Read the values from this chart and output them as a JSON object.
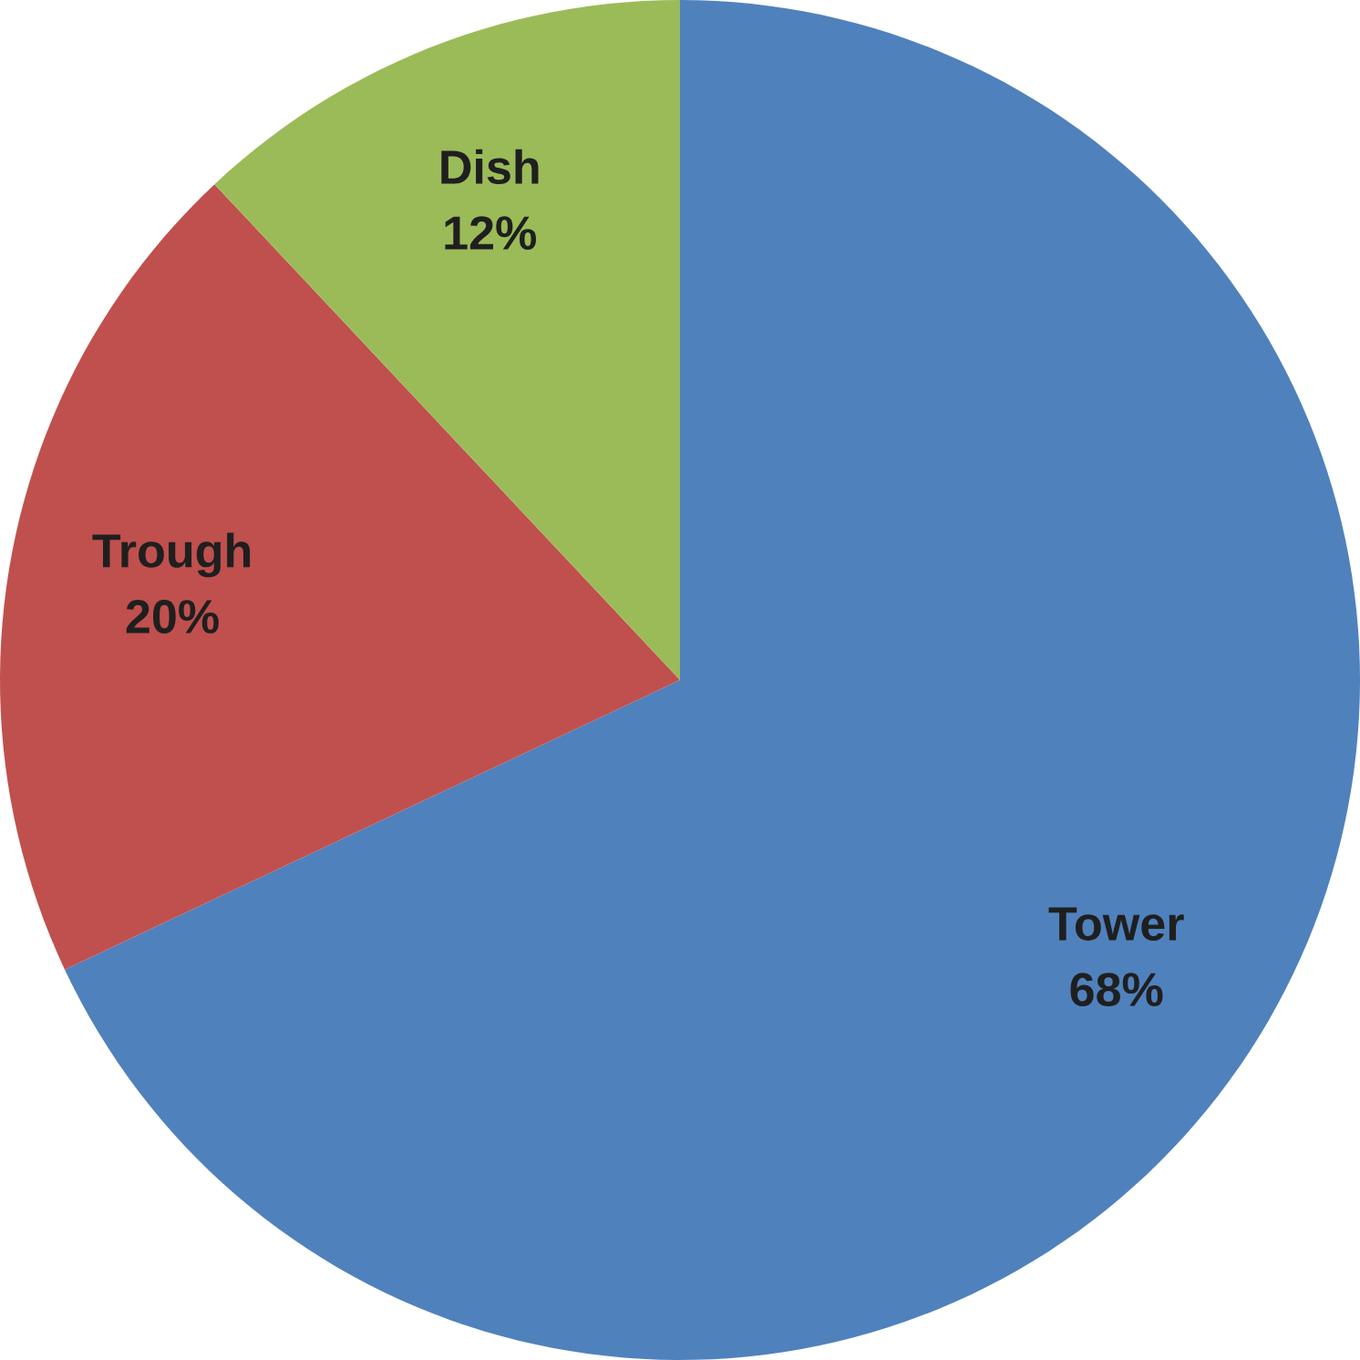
{
  "chart_data": {
    "type": "pie",
    "categories": [
      "Tower",
      "Trough",
      "Dish"
    ],
    "values": [
      68,
      20,
      12
    ],
    "value_labels": [
      "68%",
      "20%",
      "12%"
    ],
    "colors": [
      "#4f81bd",
      "#c0504d",
      "#9bbb59"
    ]
  }
}
